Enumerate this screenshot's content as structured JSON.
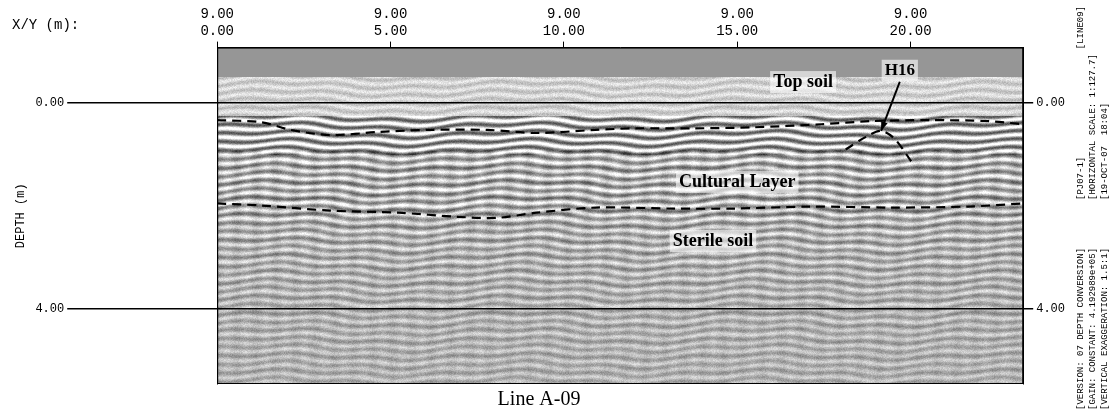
{
  "chart_data": {
    "type": "radargram",
    "title": "Line A-09",
    "x_label": "X/Y (m):",
    "y_label": "DEPTH (m)",
    "xlim": [
      0,
      23.25
    ],
    "xticks": [
      {
        "value": 0,
        "label": "9.00\n0.00"
      },
      {
        "value": 5,
        "label": "9.00\n5.00"
      },
      {
        "value": 10,
        "label": "9.00\n10.00"
      },
      {
        "value": 15,
        "label": "9.00\n15.00"
      },
      {
        "value": 20,
        "label": "9.00\n20.00"
      }
    ],
    "ylim": [
      -1.07,
      5.47
    ],
    "yticks": [
      {
        "value": 0,
        "label": "0.00"
      },
      {
        "value": 4,
        "label": "4.00"
      }
    ],
    "y2lim": [
      -1.07,
      5.47
    ],
    "y2ticks": [
      {
        "value": 0,
        "label": "0.00"
      },
      {
        "value": 4,
        "label": "4.00"
      }
    ],
    "grid": true,
    "lines": [
      {
        "color": "#000000",
        "line_style": "dashed",
        "x": [
          0,
          1.27,
          2.12,
          3.26,
          4.67,
          6.09,
          7.79,
          9.21,
          10.91,
          12.04,
          13.74,
          15.44,
          17.42,
          18.84,
          20.54,
          22.24,
          23.23
        ],
        "values": [
          0.34,
          0.38,
          0.53,
          0.63,
          0.57,
          0.53,
          0.53,
          0.59,
          0.53,
          0.5,
          0.5,
          0.48,
          0.42,
          0.36,
          0.34,
          0.36,
          0.42
        ]
      },
      {
        "color": "#000000",
        "line_style": "dashed",
        "x": [
          0,
          1.27,
          3.26,
          5.24,
          6.94,
          8.07,
          9.21,
          10.91,
          13.17,
          14.87,
          17.14,
          19.41,
          21.67,
          23.23
        ],
        "values": [
          1.96,
          2.0,
          2.1,
          2.14,
          2.22,
          2.24,
          2.14,
          2.04,
          2.06,
          2.06,
          2.02,
          2.04,
          2.02,
          1.96
        ]
      },
      {
        "color": "#000000",
        "line_style": "dashed",
        "x": [
          18.13,
          18.7,
          19.15,
          19.55,
          20.03
        ],
        "values": [
          0.91,
          0.67,
          0.55,
          0.71,
          1.15
        ]
      }
    ],
    "annotations": [
      {
        "text": "Top soil",
        "x": 16.9,
        "y": -0.4
      },
      {
        "text": "Cultural Layer",
        "x": 15.0,
        "y": 1.54
      },
      {
        "text": "Sterile soil",
        "x": 14.3,
        "y": 2.69
      },
      {
        "text": "H16",
        "x": 19.69,
        "y": -0.63,
        "target": {
          "x": 19.15,
          "y": 0.55
        }
      }
    ],
    "side_notes": {
      "top": [
        [
          "[PJ07-1]",
          "[LINE09]"
        ],
        [
          "[HORIZONTAL SCALE: 1:127.7]"
        ],
        [
          "[19-OCT-07  18:04]"
        ]
      ],
      "bottom": [
        [
          "[VERSION: 07 DEPTH CONVERSION]"
        ],
        [
          "[GAIN: CONSTANT: 4.192989e+05]"
        ],
        [
          "[VERTICAL EXAGGERATION: 1.5:1]"
        ]
      ]
    }
  }
}
